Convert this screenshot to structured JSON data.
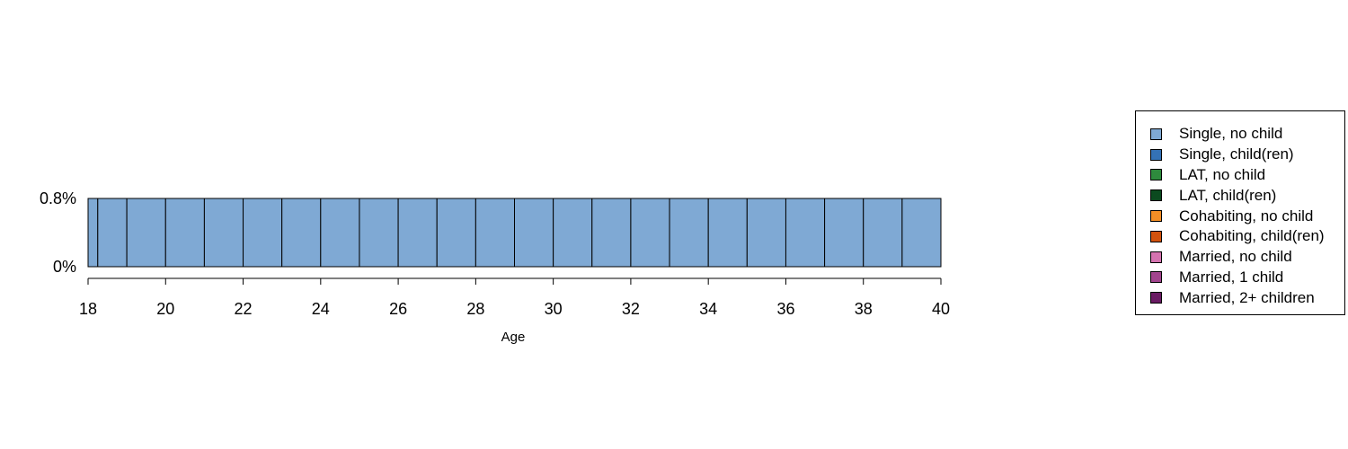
{
  "chart_data": {
    "type": "bar",
    "title": "",
    "xlabel": "Age",
    "ylabel": "",
    "x_range": [
      18,
      40
    ],
    "x_ticks": [
      "18",
      "20",
      "22",
      "24",
      "26",
      "28",
      "30",
      "32",
      "34",
      "36",
      "38",
      "40"
    ],
    "y_ticks": [
      "0%",
      "0.8%"
    ],
    "ylim": [
      0,
      0.8
    ],
    "bars": [
      {
        "start": 18,
        "end": 18.25,
        "state": "Single, no child",
        "value": 0.8
      },
      {
        "start": 18.25,
        "end": 19,
        "state": "Single, no child",
        "value": 0.8
      },
      {
        "start": 19,
        "end": 20,
        "state": "Single, no child",
        "value": 0.8
      },
      {
        "start": 20,
        "end": 21,
        "state": "Single, no child",
        "value": 0.8
      },
      {
        "start": 21,
        "end": 22,
        "state": "Single, no child",
        "value": 0.8
      },
      {
        "start": 22,
        "end": 23,
        "state": "Single, no child",
        "value": 0.8
      },
      {
        "start": 23,
        "end": 24,
        "state": "Single, no child",
        "value": 0.8
      },
      {
        "start": 24,
        "end": 25,
        "state": "Single, no child",
        "value": 0.8
      },
      {
        "start": 25,
        "end": 26,
        "state": "Single, no child",
        "value": 0.8
      },
      {
        "start": 26,
        "end": 27,
        "state": "Single, no child",
        "value": 0.8
      },
      {
        "start": 27,
        "end": 28,
        "state": "Single, no child",
        "value": 0.8
      },
      {
        "start": 28,
        "end": 29,
        "state": "Single, no child",
        "value": 0.8
      },
      {
        "start": 29,
        "end": 30,
        "state": "Single, no child",
        "value": 0.8
      },
      {
        "start": 30,
        "end": 31,
        "state": "Single, no child",
        "value": 0.8
      },
      {
        "start": 31,
        "end": 32,
        "state": "Single, no child",
        "value": 0.8
      },
      {
        "start": 32,
        "end": 33,
        "state": "Single, no child",
        "value": 0.8
      },
      {
        "start": 33,
        "end": 34,
        "state": "Single, no child",
        "value": 0.8
      },
      {
        "start": 34,
        "end": 35,
        "state": "Single, no child",
        "value": 0.8
      },
      {
        "start": 35,
        "end": 36,
        "state": "Single, no child",
        "value": 0.8
      },
      {
        "start": 36,
        "end": 37,
        "state": "Single, no child",
        "value": 0.8
      },
      {
        "start": 37,
        "end": 38,
        "state": "Single, no child",
        "value": 0.8
      },
      {
        "start": 38,
        "end": 39,
        "state": "Single, no child",
        "value": 0.8
      },
      {
        "start": 39,
        "end": 40,
        "state": "Single, no child",
        "value": 0.8
      }
    ],
    "legend": [
      {
        "label": "Single, no child",
        "color": "#7FA9D4"
      },
      {
        "label": "Single, child(ren)",
        "color": "#3472B6"
      },
      {
        "label": "LAT, no child",
        "color": "#2E8B3D"
      },
      {
        "label": "LAT, child(ren)",
        "color": "#0B4A1F"
      },
      {
        "label": "Cohabiting, no child",
        "color": "#F28E26"
      },
      {
        "label": "Cohabiting, child(ren)",
        "color": "#D2520E"
      },
      {
        "label": "Married, no child",
        "color": "#D473AF"
      },
      {
        "label": "Married, 1 child",
        "color": "#A2448E"
      },
      {
        "label": "Married, 2+ children",
        "color": "#6A1B63"
      }
    ],
    "legend_position": "right"
  }
}
